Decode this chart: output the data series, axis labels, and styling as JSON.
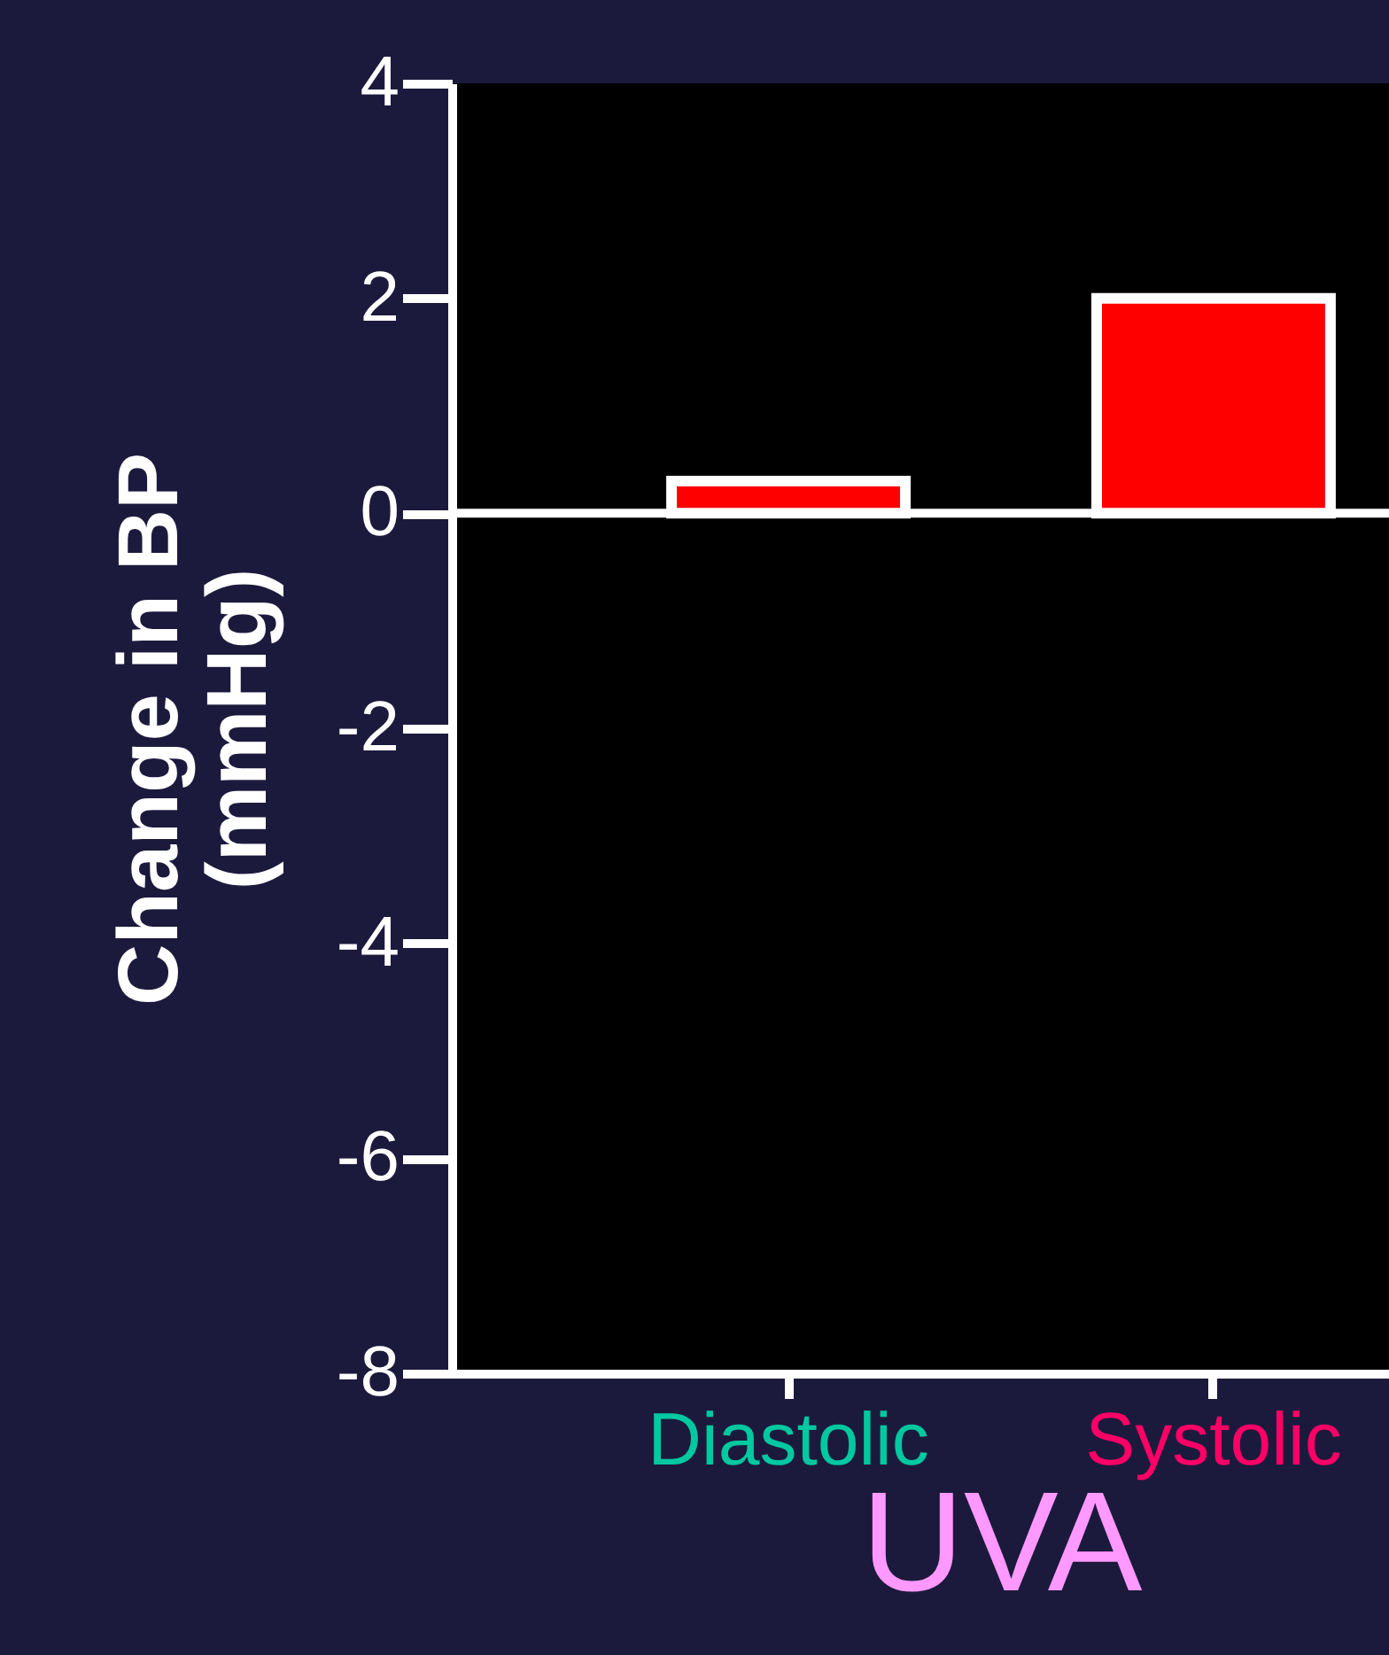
{
  "chart_data": {
    "type": "bar",
    "categories": [
      "Diastolic",
      "Systolic"
    ],
    "values": [
      0.3,
      2
    ],
    "colors": [
      "#ff0000",
      "#ff0000"
    ],
    "xlabel": "UVA",
    "ylabel": "Change in BP\n(mmHg)",
    "ylim": [
      -8,
      4
    ],
    "yticks": [
      -8,
      -6,
      -4,
      -2,
      0,
      2,
      4
    ],
    "ref_lines": [
      {
        "axis": "y",
        "value": 0,
        "color": "#ffffff"
      }
    ],
    "grid": false
  }
}
